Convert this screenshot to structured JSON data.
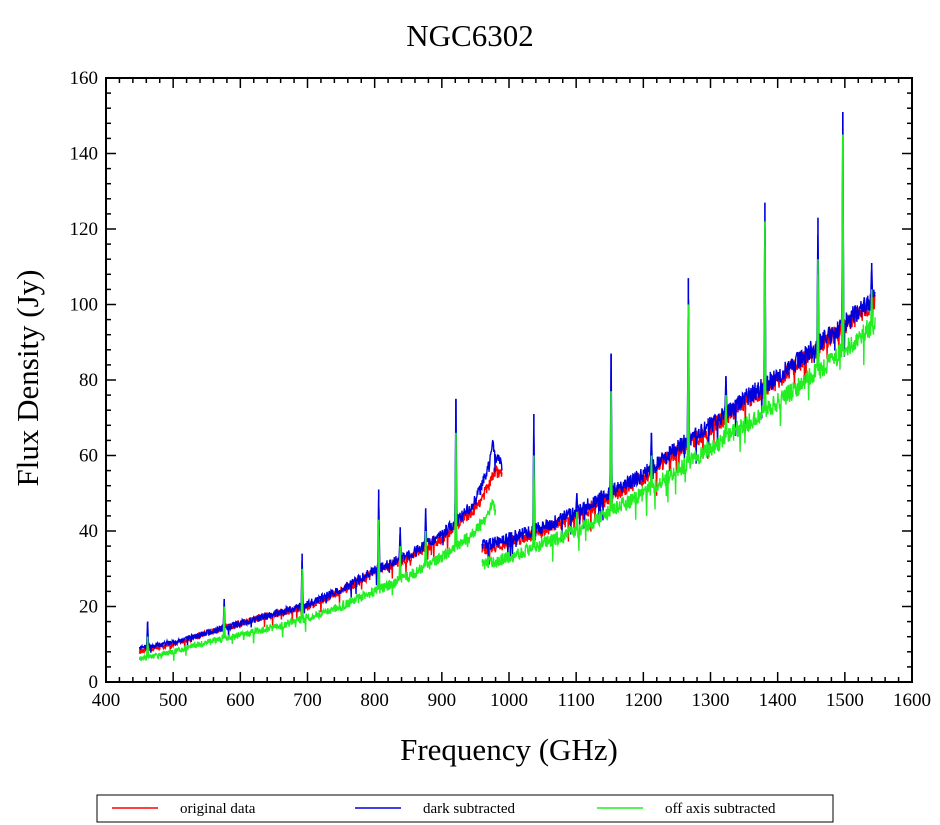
{
  "chart_data": {
    "type": "line",
    "title": "NGC6302",
    "xlabel": "Frequency (GHz)",
    "ylabel": "Flux Density (Jy)",
    "xlim": [
      400,
      1600
    ],
    "ylim": [
      0,
      160
    ],
    "xticks": [
      400,
      500,
      600,
      700,
      800,
      900,
      1000,
      1100,
      1200,
      1300,
      1400,
      1500,
      1600
    ],
    "yticks": [
      0,
      20,
      40,
      60,
      80,
      100,
      120,
      140,
      160
    ],
    "grid": false,
    "legend_position": "bottom",
    "segments": [
      [
        450,
        990
      ],
      [
        960,
        1545
      ]
    ],
    "series": [
      {
        "name": "original data",
        "color": "#ff0000",
        "points": [
          [
            450,
            8
          ],
          [
            500,
            10
          ],
          [
            550,
            13
          ],
          [
            600,
            15.5
          ],
          [
            650,
            18
          ],
          [
            700,
            20
          ],
          [
            750,
            24
          ],
          [
            800,
            29
          ],
          [
            850,
            33
          ],
          [
            900,
            38
          ],
          [
            930,
            43
          ],
          [
            950,
            46
          ],
          [
            970,
            52
          ],
          [
            980,
            56
          ],
          [
            990,
            55
          ],
          [
            960,
            35
          ],
          [
            1000,
            37
          ],
          [
            1050,
            40
          ],
          [
            1100,
            44
          ],
          [
            1150,
            49
          ],
          [
            1200,
            54
          ],
          [
            1250,
            61
          ],
          [
            1300,
            67
          ],
          [
            1350,
            74
          ],
          [
            1400,
            80
          ],
          [
            1450,
            87
          ],
          [
            1500,
            94
          ],
          [
            1545,
            101
          ]
        ],
        "peaks": []
      },
      {
        "name": "dark subtracted",
        "color": "#0000dd",
        "points": [
          [
            450,
            9
          ],
          [
            500,
            10.5
          ],
          [
            550,
            13
          ],
          [
            600,
            15.5
          ],
          [
            650,
            18
          ],
          [
            700,
            20.5
          ],
          [
            750,
            24.5
          ],
          [
            800,
            29.5
          ],
          [
            850,
            33.5
          ],
          [
            900,
            39
          ],
          [
            930,
            44
          ],
          [
            950,
            48
          ],
          [
            970,
            57
          ],
          [
            975,
            64
          ],
          [
            980,
            60
          ],
          [
            990,
            57
          ],
          [
            960,
            36
          ],
          [
            1000,
            38
          ],
          [
            1050,
            41
          ],
          [
            1100,
            45
          ],
          [
            1150,
            50
          ],
          [
            1200,
            55
          ],
          [
            1250,
            62
          ],
          [
            1300,
            68
          ],
          [
            1350,
            75
          ],
          [
            1400,
            81
          ],
          [
            1450,
            88
          ],
          [
            1500,
            95
          ],
          [
            1545,
            102
          ]
        ],
        "peaks": [
          [
            462,
            16
          ],
          [
            576,
            22
          ],
          [
            692,
            34
          ],
          [
            806,
            51
          ],
          [
            838,
            41
          ],
          [
            876,
            46
          ],
          [
            921,
            75
          ],
          [
            1037,
            71
          ],
          [
            1101,
            50
          ],
          [
            1152,
            87
          ],
          [
            1212,
            66
          ],
          [
            1267,
            107
          ],
          [
            1323,
            81
          ],
          [
            1381,
            127
          ],
          [
            1460,
            123
          ],
          [
            1497,
            151
          ],
          [
            1540,
            111
          ]
        ]
      },
      {
        "name": "off axis subtracted",
        "color": "#22ee22",
        "points": [
          [
            450,
            6
          ],
          [
            500,
            8
          ],
          [
            550,
            10.5
          ],
          [
            600,
            12.5
          ],
          [
            650,
            14.5
          ],
          [
            700,
            17
          ],
          [
            750,
            20
          ],
          [
            800,
            24
          ],
          [
            850,
            28
          ],
          [
            900,
            33
          ],
          [
            930,
            37
          ],
          [
            950,
            40
          ],
          [
            970,
            44
          ],
          [
            975,
            49
          ],
          [
            980,
            45
          ],
          [
            960,
            31
          ],
          [
            1000,
            33
          ],
          [
            1050,
            36.5
          ],
          [
            1100,
            40
          ],
          [
            1150,
            45
          ],
          [
            1200,
            50
          ],
          [
            1250,
            56
          ],
          [
            1300,
            62
          ],
          [
            1350,
            68
          ],
          [
            1400,
            74
          ],
          [
            1450,
            81
          ],
          [
            1500,
            88
          ],
          [
            1545,
            95
          ]
        ],
        "peaks": [
          [
            462,
            12
          ],
          [
            576,
            20
          ],
          [
            692,
            30
          ],
          [
            806,
            43
          ],
          [
            838,
            36
          ],
          [
            876,
            40
          ],
          [
            921,
            66
          ],
          [
            1037,
            60
          ],
          [
            1101,
            45
          ],
          [
            1152,
            77
          ],
          [
            1212,
            60
          ],
          [
            1267,
            100
          ],
          [
            1323,
            76
          ],
          [
            1381,
            122
          ],
          [
            1460,
            112
          ],
          [
            1497,
            145
          ],
          [
            1540,
            104
          ]
        ]
      }
    ]
  }
}
